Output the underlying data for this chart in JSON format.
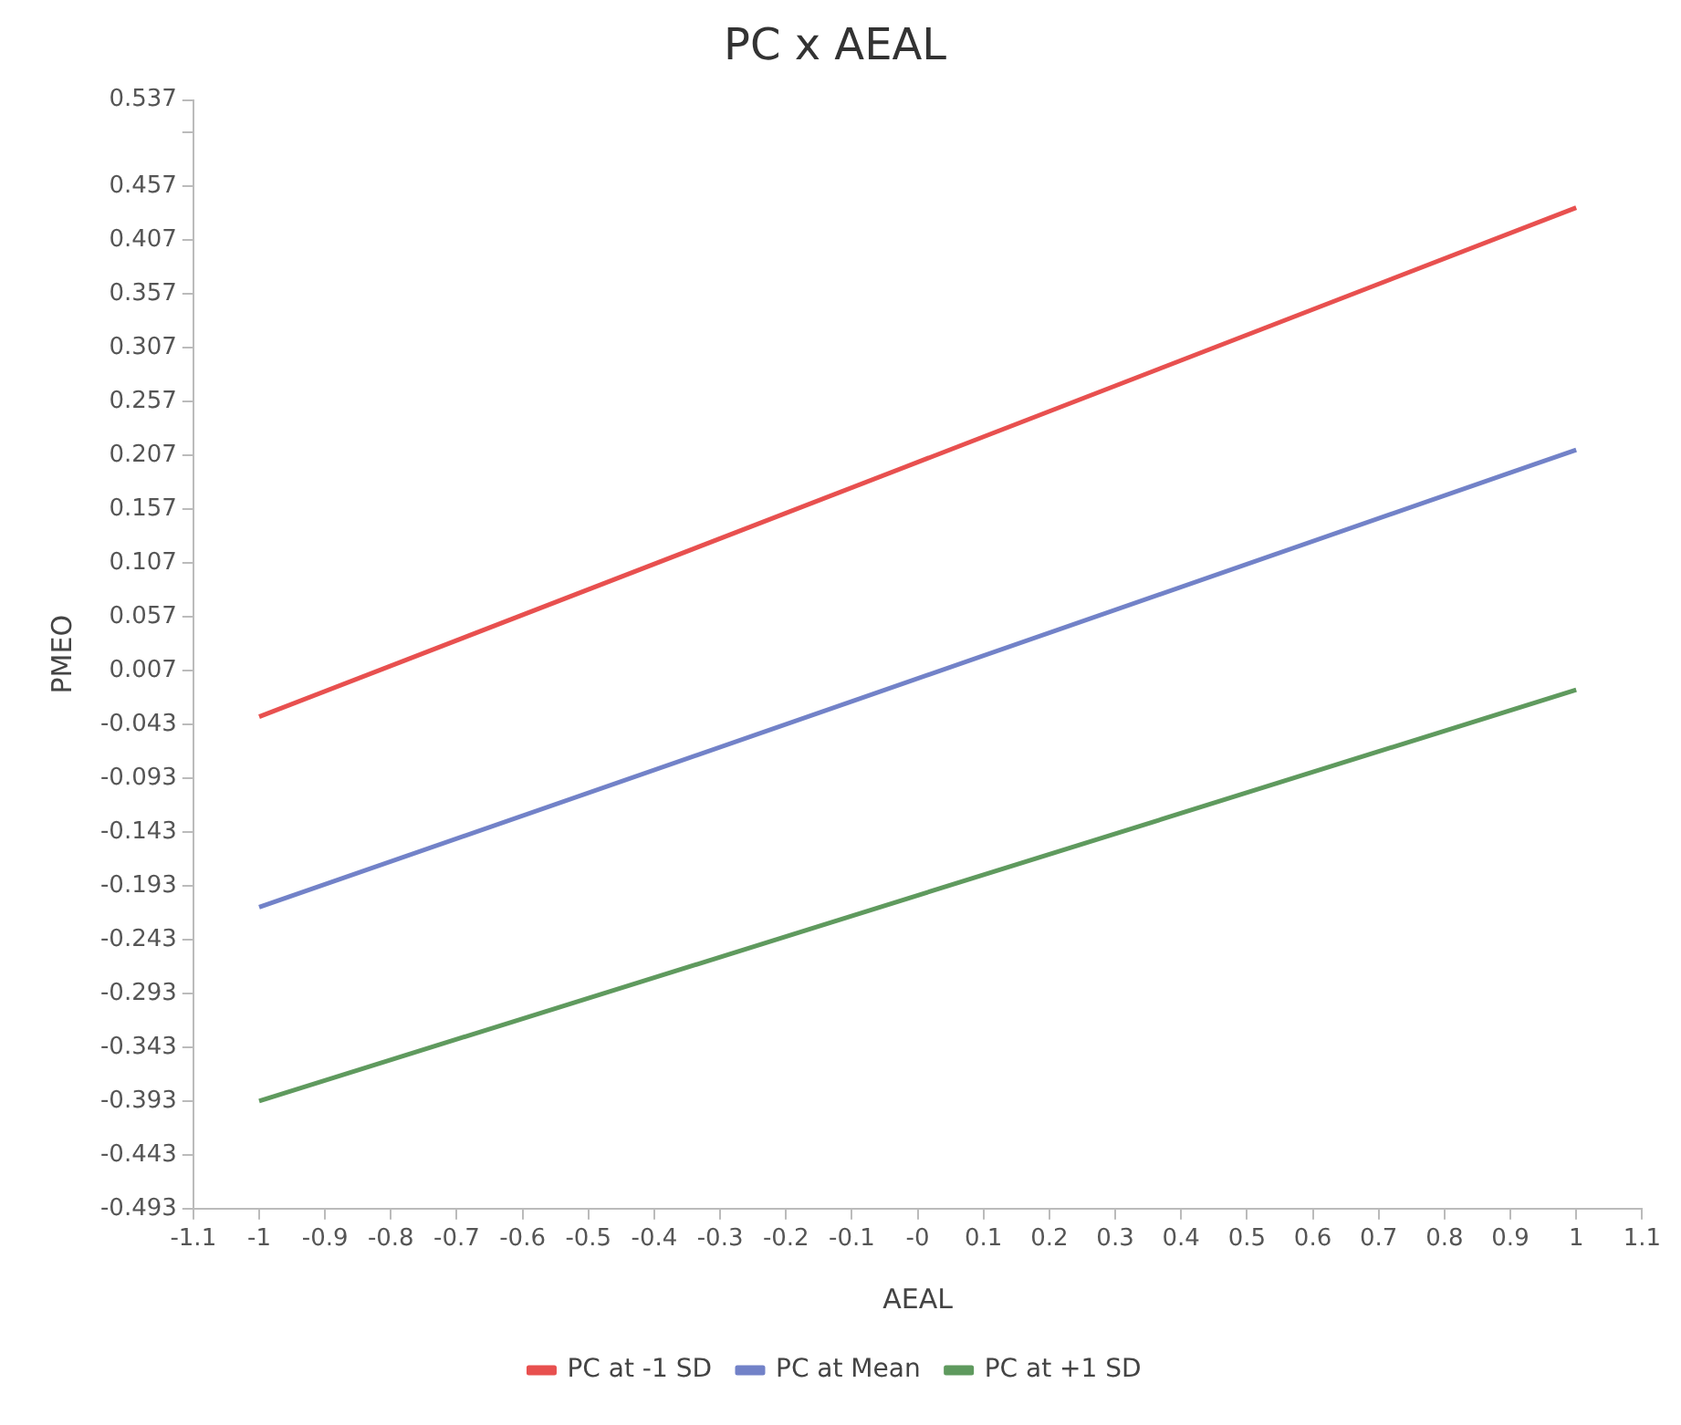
{
  "chart_data": {
    "type": "line",
    "title": "PC x AEAL",
    "xlabel": "AEAL",
    "ylabel": "PMEO",
    "x": [
      -1,
      1
    ],
    "series": [
      {
        "name": "PC at -1 SD",
        "color": "#e8504f",
        "values": [
          -0.036,
          0.437
        ]
      },
      {
        "name": "PC at Mean",
        "color": "#7282c8",
        "values": [
          -0.213,
          0.212
        ]
      },
      {
        "name": "PC at +1 SD",
        "color": "#5f9a5e",
        "values": [
          -0.393,
          -0.011
        ]
      }
    ],
    "xlim": [
      -1.1,
      1.1
    ],
    "xticks": [
      -1.1,
      -1,
      -0.9,
      -0.8,
      -0.7,
      -0.6,
      -0.5,
      -0.4,
      -0.3,
      -0.2,
      -0.1,
      {
        "value": 0,
        "label": "-0"
      },
      0.1,
      0.2,
      0.3,
      0.4,
      0.5,
      0.6,
      0.7,
      0.8,
      0.9,
      1,
      1.1
    ],
    "ylim": [
      -0.493,
      0.537
    ],
    "yticks": [
      -0.493,
      -0.443,
      -0.393,
      -0.343,
      -0.293,
      -0.243,
      -0.193,
      -0.143,
      -0.093,
      -0.043,
      0.007,
      0.057,
      0.107,
      0.157,
      0.207,
      0.257,
      0.307,
      0.357,
      0.407,
      0.457,
      {
        "value": 0.507,
        "label": null
      },
      0.537
    ],
    "grid": false,
    "legend": "bottom",
    "marker": "none",
    "line_style": "solid"
  }
}
